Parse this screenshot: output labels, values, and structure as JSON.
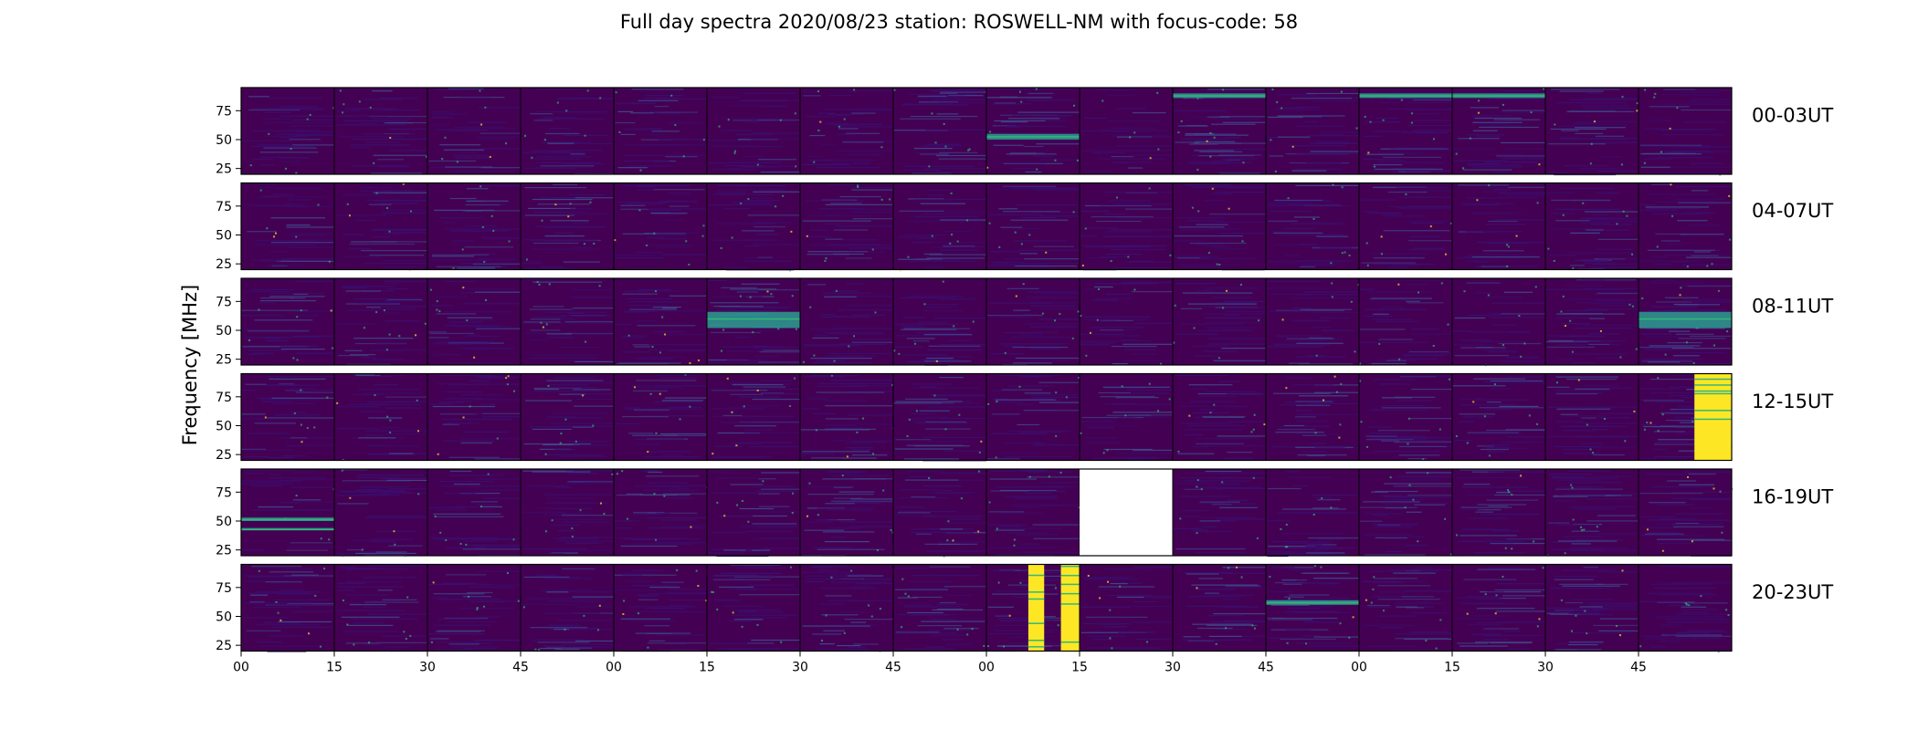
{
  "colors": {
    "background": "#440154",
    "noise_low": "#3b0f70",
    "noise_mid": "#3f4a8a",
    "signal_cyan": "#2a9d8f",
    "signal_green": "#35b779",
    "signal_yellow": "#fde725",
    "empty": "#ffffff",
    "frame": "#000000"
  },
  "chart_data": {
    "type": "heatmap",
    "title": "Full day spectra 2020/08/23 station: ROSWELL-NM with focus-code: 58",
    "ylabel": "Frequency [MHz]",
    "xlabel": "",
    "ylim": [
      20,
      95
    ],
    "y_ticks": [
      25,
      50,
      75
    ],
    "x_tick_labels": [
      "00",
      "15",
      "30",
      "45",
      "00",
      "15",
      "30",
      "45",
      "00",
      "15",
      "30",
      "45",
      "00",
      "15",
      "30",
      "45"
    ],
    "columns_per_row": 16,
    "minutes_per_column": 15,
    "rows": [
      {
        "label": "00-03UT",
        "cells": [
          {
            "level": 0.3
          },
          {
            "level": 0.25
          },
          {
            "level": 0.25
          },
          {
            "level": 0.25
          },
          {
            "level": 0.3
          },
          {
            "level": 0.25
          },
          {
            "level": 0.3
          },
          {
            "level": 0.3
          },
          {
            "level": 0.4,
            "bands": [
              [
                50,
                55
              ]
            ]
          },
          {
            "level": 0.15
          },
          {
            "level": 0.5,
            "bands": [
              [
                86,
                90
              ]
            ]
          },
          {
            "level": 0.3
          },
          {
            "level": 0.4,
            "bands": [
              [
                86,
                90
              ]
            ]
          },
          {
            "level": 0.35,
            "bands": [
              [
                86,
                90
              ]
            ]
          },
          {
            "level": 0.3
          },
          {
            "level": 0.3
          }
        ]
      },
      {
        "label": "04-07UT",
        "cells": [
          {
            "level": 0.25
          },
          {
            "level": 0.25
          },
          {
            "level": 0.3
          },
          {
            "level": 0.3
          },
          {
            "level": 0.3
          },
          {
            "level": 0.25
          },
          {
            "level": 0.3
          },
          {
            "level": 0.25
          },
          {
            "level": 0.25
          },
          {
            "level": 0.25
          },
          {
            "level": 0.25
          },
          {
            "level": 0.3
          },
          {
            "level": 0.25
          },
          {
            "level": 0.3
          },
          {
            "level": 0.35
          },
          {
            "level": 0.25
          }
        ]
      },
      {
        "label": "08-11UT",
        "cells": [
          {
            "level": 0.3
          },
          {
            "level": 0.25
          },
          {
            "level": 0.25
          },
          {
            "level": 0.3
          },
          {
            "level": 0.3
          },
          {
            "level": 0.45,
            "bands": [
              [
                52,
                66
              ]
            ]
          },
          {
            "level": 0.25
          },
          {
            "level": 0.3
          },
          {
            "level": 0.25
          },
          {
            "level": 0.25
          },
          {
            "level": 0.25
          },
          {
            "level": 0.25
          },
          {
            "level": 0.25
          },
          {
            "level": 0.25
          },
          {
            "level": 0.4
          },
          {
            "level": 0.45,
            "bands": [
              [
                52,
                66
              ]
            ]
          }
        ]
      },
      {
        "label": "12-15UT",
        "cells": [
          {
            "level": 0.3
          },
          {
            "level": 0.25
          },
          {
            "level": 0.25
          },
          {
            "level": 0.3
          },
          {
            "level": 0.25
          },
          {
            "level": 0.3
          },
          {
            "level": 0.3
          },
          {
            "level": 0.3
          },
          {
            "level": 0.25
          },
          {
            "level": 0.25
          },
          {
            "level": 0.25
          },
          {
            "level": 0.25
          },
          {
            "level": 0.3
          },
          {
            "level": 0.25
          },
          {
            "level": 0.3
          },
          {
            "level": 0.5,
            "burst": {
              "from": 0.6,
              "to": 1.0
            }
          }
        ]
      },
      {
        "label": "16-19UT",
        "cells": [
          {
            "level": 0.1,
            "bands": [
              [
                50,
                53
              ],
              [
                42,
                44
              ]
            ]
          },
          {
            "level": 0.3
          },
          {
            "level": 0.25
          },
          {
            "level": 0.3
          },
          {
            "level": 0.25
          },
          {
            "level": 0.25
          },
          {
            "level": 0.3
          },
          {
            "level": 0.25
          },
          {
            "level": 0.25
          },
          {
            "empty": true
          },
          {
            "level": 0.3
          },
          {
            "level": 0.3
          },
          {
            "level": 0.3
          },
          {
            "level": 0.3
          },
          {
            "level": 0.35
          },
          {
            "level": 0.3
          }
        ]
      },
      {
        "label": "20-23UT",
        "cells": [
          {
            "level": 0.3
          },
          {
            "level": 0.3
          },
          {
            "level": 0.3
          },
          {
            "level": 0.3
          },
          {
            "level": 0.3
          },
          {
            "level": 0.3
          },
          {
            "level": 0.35
          },
          {
            "level": 0.3
          },
          {
            "level": 0.3,
            "burst": {
              "from": 0.45,
              "to": 0.62
            },
            "burst2": {
              "from": 0.8,
              "to": 1.0
            }
          },
          {
            "level": 0.25
          },
          {
            "level": 0.3
          },
          {
            "level": 0.35,
            "bands": [
              [
                60,
                64
              ]
            ]
          },
          {
            "level": 0.3
          },
          {
            "level": 0.3
          },
          {
            "level": 0.3
          },
          {
            "level": 0.3
          }
        ]
      }
    ]
  }
}
